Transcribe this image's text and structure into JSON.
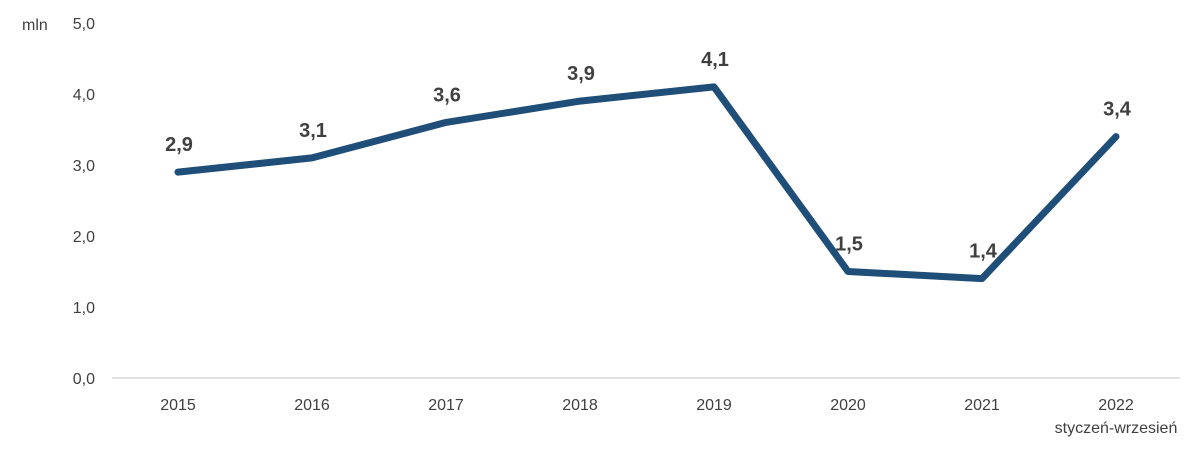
{
  "chart_data": {
    "type": "line",
    "title": "",
    "xlabel": "",
    "ylabel": "",
    "y_unit_label": "mln",
    "categories": [
      "2015",
      "2016",
      "2017",
      "2018",
      "2019",
      "2020",
      "2021",
      "2022"
    ],
    "category_sublabels": [
      "",
      "",
      "",
      "",
      "",
      "",
      "",
      "styczeń-wrzesień"
    ],
    "series": [
      {
        "values": [
          2.9,
          3.1,
          3.6,
          3.9,
          4.1,
          1.5,
          1.4,
          3.4
        ],
        "data_labels": [
          "2,9",
          "3,1",
          "3,6",
          "3,9",
          "4,1",
          "1,5",
          "1,4",
          "3,4"
        ],
        "color": "#1f4e79"
      }
    ],
    "ylim": [
      0,
      5
    ],
    "yticks": [
      0,
      1,
      2,
      3,
      4,
      5
    ],
    "ytick_labels": [
      "0,0",
      "1,0",
      "2,0",
      "3,0",
      "4,0",
      "5,0"
    ],
    "grid": false,
    "legend": "none",
    "axis_color": "#d9d9d9",
    "text_color": "#404040"
  }
}
